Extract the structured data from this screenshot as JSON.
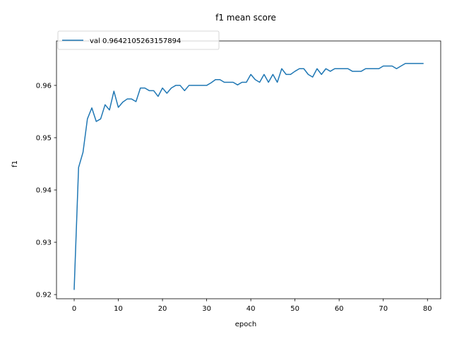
{
  "chart_data": {
    "type": "line",
    "title": "f1 mean score",
    "xlabel": "epoch",
    "ylabel": "f1",
    "xlim": [
      -4,
      83
    ],
    "ylim": [
      0.9192,
      0.9685
    ],
    "xticks": [
      0,
      10,
      20,
      30,
      40,
      50,
      60,
      70,
      80
    ],
    "yticks": [
      0.92,
      0.93,
      0.94,
      0.95,
      0.96
    ],
    "xtick_labels": [
      "0",
      "10",
      "20",
      "30",
      "40",
      "50",
      "60",
      "70",
      "80"
    ],
    "ytick_labels": [
      "0.92",
      "0.93",
      "0.94",
      "0.95",
      "0.96"
    ],
    "grid": false,
    "legend_position": "top-left",
    "series": [
      {
        "name": "val 0.9642105263157894",
        "color": "#1f77b4",
        "x": [
          0,
          1,
          2,
          3,
          4,
          5,
          6,
          7,
          8,
          9,
          10,
          11,
          12,
          13,
          14,
          15,
          16,
          17,
          18,
          19,
          20,
          21,
          22,
          23,
          24,
          25,
          26,
          27,
          28,
          29,
          30,
          31,
          32,
          33,
          34,
          35,
          36,
          37,
          38,
          39,
          40,
          41,
          42,
          43,
          44,
          45,
          46,
          47,
          48,
          49,
          50,
          51,
          52,
          53,
          54,
          55,
          56,
          57,
          58,
          59,
          60,
          61,
          62,
          63,
          64,
          65,
          66,
          67,
          68,
          69,
          70,
          71,
          72,
          73,
          74,
          75,
          76,
          77,
          78,
          79
        ],
        "y": [
          0.921,
          0.9443,
          0.9472,
          0.9536,
          0.9557,
          0.9531,
          0.9536,
          0.9563,
          0.9553,
          0.9589,
          0.9558,
          0.9568,
          0.9574,
          0.9574,
          0.9569,
          0.9595,
          0.9595,
          0.959,
          0.959,
          0.9579,
          0.9595,
          0.9585,
          0.9595,
          0.96,
          0.96,
          0.959,
          0.96,
          0.96,
          0.96,
          0.96,
          0.96,
          0.9605,
          0.9611,
          0.9611,
          0.9606,
          0.9606,
          0.9606,
          0.9601,
          0.9606,
          0.9606,
          0.9621,
          0.9611,
          0.9606,
          0.9621,
          0.9606,
          0.9621,
          0.9606,
          0.9632,
          0.9621,
          0.9621,
          0.9627,
          0.9632,
          0.9632,
          0.9621,
          0.9616,
          0.9632,
          0.9621,
          0.9632,
          0.9627,
          0.9632,
          0.9632,
          0.9632,
          0.9632,
          0.9627,
          0.9627,
          0.9627,
          0.9632,
          0.9632,
          0.9632,
          0.9632,
          0.9637,
          0.9637,
          0.9637,
          0.9632,
          0.9637,
          0.9642,
          0.9642,
          0.9642,
          0.9642,
          0.9642
        ]
      }
    ]
  }
}
